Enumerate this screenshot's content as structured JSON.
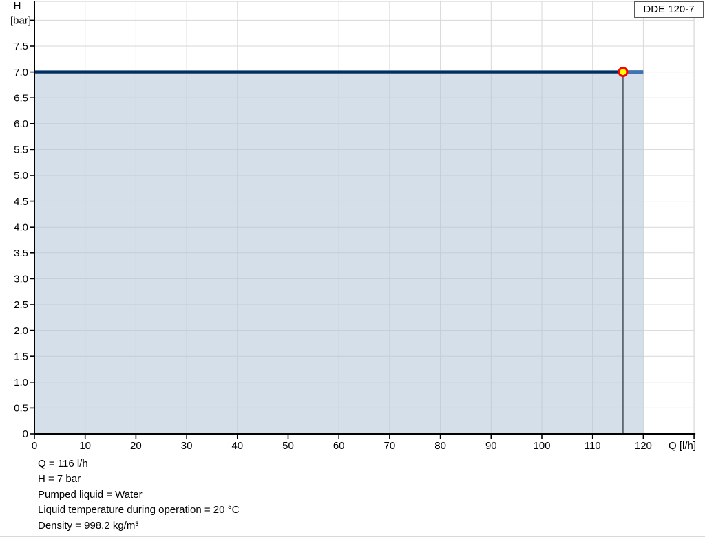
{
  "legend": {
    "label": "DDE 120-7"
  },
  "info_block": {
    "lines": [
      "Q = 116 l/h",
      "H = 7 bar",
      "Pumped liquid = Water",
      "Liquid temperature during operation = 20 °C",
      "Density = 998.2 kg/m³"
    ]
  },
  "chart_data": {
    "type": "line",
    "title": "",
    "xlabel": "Q [l/h]",
    "ylabel_lines": [
      "H",
      "[bar]"
    ],
    "xlim": [
      0,
      130
    ],
    "ylim": [
      0,
      8.36
    ],
    "grid": true,
    "grid_step_x": 10,
    "grid_step_y": 0.5,
    "x_ticks": [
      0,
      10,
      20,
      30,
      40,
      50,
      60,
      70,
      80,
      90,
      100,
      110,
      120
    ],
    "x_tick_labels": [
      "0",
      "10",
      "20",
      "30",
      "40",
      "50",
      "60",
      "70",
      "80",
      "90",
      "100",
      "110",
      "120"
    ],
    "y_ticks": [
      0,
      0.5,
      1.0,
      1.5,
      2.0,
      2.5,
      3.0,
      3.5,
      4.0,
      4.5,
      5.0,
      5.5,
      6.0,
      6.5,
      7.0,
      7.5
    ],
    "y_tick_labels": [
      "0",
      "0.5",
      "1.0",
      "1.5",
      "2.0",
      "2.5",
      "3.0",
      "3.5",
      "4.0",
      "4.5",
      "5.0",
      "5.5",
      "6.0",
      "6.5",
      "7.0",
      "7.5"
    ],
    "y_unlabeled_tick": 8.0,
    "legend_position": "top-right",
    "series": [
      {
        "name": "DDE 120-7",
        "x": [
          0,
          120
        ],
        "y": [
          7,
          7
        ],
        "color_core": "#0f2a4c",
        "color_outline": "#3b74b0"
      }
    ],
    "area_fill": {
      "x_range": [
        0,
        120
      ],
      "y_top": 7,
      "color": "#b0c4d8",
      "opacity": 0.55
    },
    "duty_point": {
      "q": 116,
      "h": 7,
      "marker_fill": "#ffff00",
      "marker_stroke": "#ff0000",
      "drop_line_color": "#5b6770"
    },
    "colors": {
      "axis": "#000000",
      "grid": "#d7d7d7",
      "text": "#000000"
    }
  }
}
